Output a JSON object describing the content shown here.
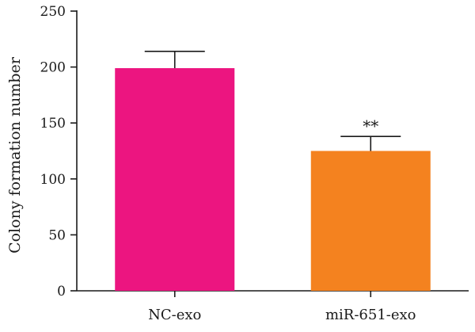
{
  "chart_data": {
    "type": "bar",
    "categories": [
      "NC-exo",
      "miR-651-exo"
    ],
    "values": [
      199,
      125
    ],
    "errors": [
      15,
      13
    ],
    "colors": [
      "#ec1580",
      "#f4821f"
    ],
    "annotations": [
      "",
      "**"
    ],
    "title": "",
    "xlabel": "",
    "ylabel": "Colony formation number",
    "ylim": [
      0,
      250
    ],
    "yticks": [
      0,
      50,
      100,
      150,
      200,
      250
    ],
    "grid": false,
    "legend": "none"
  }
}
